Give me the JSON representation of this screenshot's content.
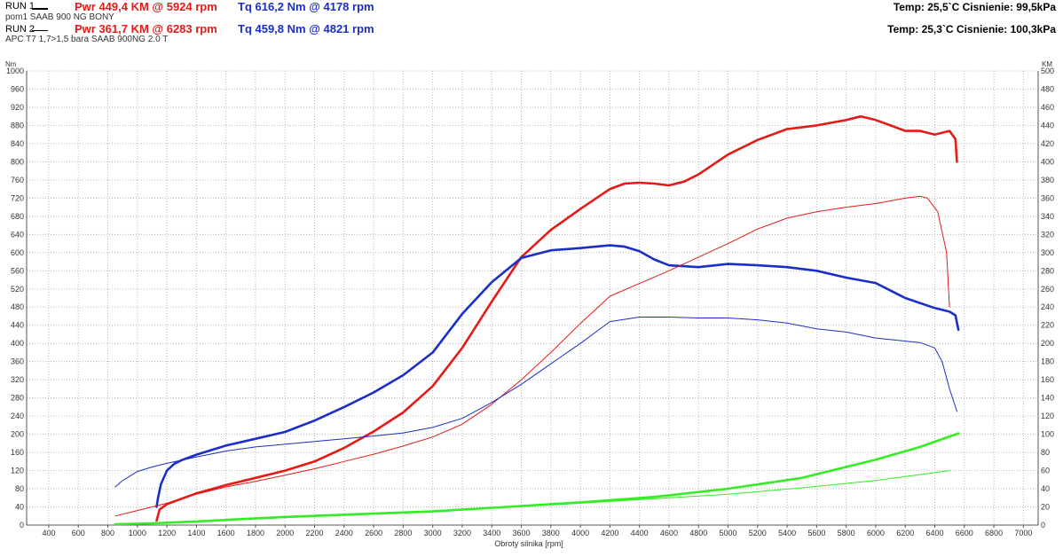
{
  "header": {
    "run1": {
      "label": "RUN 1",
      "pwr": "Pwr  449,4 KM @ 5924 rpm",
      "tq": "Tq 616,2 Nm @ 4178 rpm",
      "desc": "pom1 SAAB 900 NG BONY"
    },
    "run2": {
      "label": "RUN 2",
      "pwr": "Pwr  361,7 KM @ 6283 rpm",
      "tq": "Tq 459,8 Nm @ 4821 rpm",
      "desc": "APC T7 1,7>1,5 bara SAAB 900NG 2.0 T"
    },
    "env1": "Temp: 25,5`C   Cisnienie: 99,5kPa",
    "env2": "Temp: 25,3`C   Cisnienie: 100,3kPa"
  },
  "colors": {
    "power": "#e41b17",
    "torque": "#1a2fc8",
    "loss": "#33ee22",
    "grid": "#b8b8b8"
  },
  "chart_data": {
    "type": "line",
    "xlabel": "Obroty silnika [rpm]",
    "ylabel_left": "Nm",
    "ylabel_right": "KM",
    "xlim": [
      250,
      7100
    ],
    "ylim_left": [
      0,
      1000
    ],
    "ylim_right": [
      0,
      500
    ],
    "x_ticks": [
      400,
      600,
      800,
      1000,
      1200,
      1400,
      1600,
      1800,
      2000,
      2200,
      2400,
      2600,
      2800,
      3000,
      3200,
      3400,
      3600,
      3800,
      4000,
      4200,
      4400,
      4600,
      4800,
      5000,
      5200,
      5400,
      5600,
      5800,
      6000,
      6200,
      6400,
      6600,
      6800,
      7000
    ],
    "y_ticks_left": [
      0,
      40,
      80,
      120,
      160,
      200,
      240,
      280,
      320,
      360,
      400,
      440,
      480,
      520,
      560,
      600,
      640,
      680,
      720,
      760,
      800,
      840,
      880,
      920,
      960,
      1000
    ],
    "y_ticks_right": [
      0,
      20,
      40,
      60,
      80,
      100,
      120,
      140,
      160,
      180,
      200,
      220,
      240,
      260,
      280,
      300,
      320,
      340,
      360,
      380,
      400,
      420,
      440,
      460,
      480,
      500
    ],
    "grid": true,
    "series": [
      {
        "name": "run1_power",
        "axis": "right",
        "weight": "thick",
        "color": "#e41b17",
        "x": [
          1130,
          1150,
          1200,
          1400,
          1600,
          1800,
          2000,
          2200,
          2400,
          2600,
          2800,
          3000,
          3200,
          3400,
          3600,
          3800,
          4000,
          4200,
          4300,
          4400,
          4500,
          4600,
          4700,
          4800,
          5000,
          5200,
          5400,
          5600,
          5800,
          5900,
          6000,
          6100,
          6200,
          6300,
          6400,
          6500,
          6540,
          6550
        ],
        "y": [
          5,
          17,
          23,
          35,
          44,
          52,
          60,
          70,
          85,
          103,
          124,
          153,
          195,
          246,
          295,
          325,
          348,
          370,
          376,
          377,
          376,
          374,
          378,
          386,
          408,
          424,
          436,
          440,
          446,
          450,
          446,
          440,
          434,
          434,
          430,
          434,
          425,
          400
        ]
      },
      {
        "name": "run1_torque",
        "axis": "left",
        "weight": "thick",
        "color": "#1a2fc8",
        "x": [
          1130,
          1140,
          1160,
          1200,
          1250,
          1300,
          1400,
          1600,
          1800,
          2000,
          2200,
          2400,
          2600,
          2800,
          3000,
          3200,
          3400,
          3600,
          3800,
          4000,
          4200,
          4300,
          4400,
          4500,
          4600,
          4800,
          5000,
          5200,
          5400,
          5600,
          5800,
          6000,
          6200,
          6400,
          6500,
          6540,
          6560
        ],
        "y": [
          40,
          60,
          90,
          120,
          135,
          143,
          155,
          175,
          190,
          205,
          230,
          260,
          292,
          330,
          380,
          465,
          535,
          588,
          605,
          610,
          616,
          613,
          603,
          585,
          572,
          568,
          575,
          572,
          568,
          560,
          545,
          533,
          500,
          478,
          470,
          462,
          430
        ]
      },
      {
        "name": "run1_loss",
        "axis": "right",
        "weight": "thick",
        "color": "#33ee22",
        "x": [
          850,
          1100,
          1400,
          2000,
          2500,
          3000,
          3500,
          4000,
          4500,
          5000,
          5500,
          6000,
          6300,
          6560
        ],
        "y": [
          1,
          2,
          4,
          9,
          12,
          15,
          20,
          25,
          31,
          40,
          52,
          72,
          86,
          101
        ]
      },
      {
        "name": "run2_power",
        "axis": "right",
        "weight": "thin",
        "color": "#e41b17",
        "x": [
          850,
          1000,
          1100,
          1200,
          1400,
          1600,
          1800,
          2000,
          2200,
          2400,
          2600,
          2800,
          3000,
          3200,
          3400,
          3600,
          3800,
          4000,
          4200,
          4400,
          4600,
          4800,
          5000,
          5200,
          5400,
          5600,
          5800,
          6000,
          6200,
          6300,
          6350,
          6420,
          6480,
          6500
        ],
        "y": [
          10,
          16,
          20,
          24,
          34,
          42,
          48,
          55,
          62,
          70,
          78,
          87,
          97,
          111,
          133,
          160,
          190,
          222,
          252,
          266,
          280,
          295,
          310,
          326,
          338,
          345,
          350,
          354,
          360,
          362,
          360,
          345,
          300,
          240
        ]
      },
      {
        "name": "run2_torque",
        "axis": "left",
        "weight": "thin",
        "color": "#1a2fc8",
        "x": [
          850,
          900,
          1000,
          1100,
          1200,
          1400,
          1600,
          1800,
          2000,
          2200,
          2400,
          2600,
          2800,
          3000,
          3200,
          3400,
          3600,
          3800,
          4000,
          4200,
          4400,
          4600,
          4800,
          5000,
          5200,
          5400,
          5600,
          5800,
          6000,
          6200,
          6300,
          6400,
          6450,
          6500,
          6550
        ],
        "y": [
          84,
          98,
          118,
          128,
          136,
          150,
          163,
          172,
          178,
          184,
          190,
          196,
          203,
          215,
          235,
          270,
          310,
          355,
          400,
          448,
          458,
          458,
          456,
          456,
          452,
          445,
          432,
          425,
          412,
          405,
          402,
          390,
          360,
          300,
          250
        ]
      },
      {
        "name": "run2_loss",
        "axis": "right",
        "weight": "thin",
        "color": "#33ee22",
        "x": [
          850,
          1200,
          2000,
          3000,
          4000,
          5000,
          5500,
          6000,
          6500
        ],
        "y": [
          1,
          3,
          8,
          15,
          24,
          34,
          41,
          49,
          60
        ]
      }
    ]
  }
}
